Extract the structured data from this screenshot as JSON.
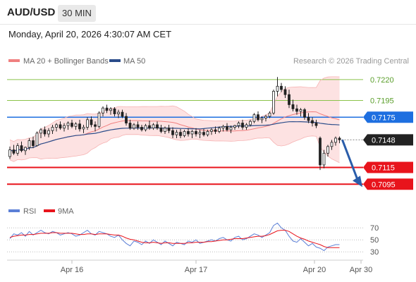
{
  "header": {
    "symbol": "AUD/USD",
    "timeframe": "30 MIN",
    "datetime": "Monday, April 20, 2026 4:30:07 AM CET"
  },
  "legend": {
    "bollinger_label": "MA 20 + Bollinger Bands",
    "ma50_label": "MA 50",
    "copyright": "Research © 2026 Trading Central"
  },
  "colors": {
    "candle_up": "#222222",
    "candle_down": "#222222",
    "bollinger": "#f08080",
    "band_fill": "#fde2e2",
    "ma50": "#2a4c8a",
    "resistance": "#8bc34a",
    "pivot": "#1e6fe0",
    "support": "#e8141c",
    "arrow": "#2a5daa",
    "rsi": "#5b7fd6",
    "rsi_ma": "#e8141c"
  },
  "chart_data": {
    "type": "candlestick",
    "ylim": [
      0.7075,
      0.7235
    ],
    "x_ticks": [
      "Apr 16",
      "Apr 17",
      "Apr 20",
      "Apr 30"
    ],
    "levels": [
      {
        "label": "0.7220",
        "value": 0.722,
        "kind": "resistance"
      },
      {
        "label": "0.7195",
        "value": 0.7195,
        "kind": "resistance"
      },
      {
        "label": "0.7175",
        "value": 0.7175,
        "kind": "pivot"
      },
      {
        "label": "0.7148",
        "value": 0.7148,
        "kind": "last"
      },
      {
        "label": "0.7115",
        "value": 0.7115,
        "kind": "support"
      },
      {
        "label": "0.7095",
        "value": 0.7095,
        "kind": "support"
      }
    ],
    "candles": [
      [
        0.7128,
        0.714,
        0.7125,
        0.7136
      ],
      [
        0.7136,
        0.7142,
        0.713,
        0.7132
      ],
      [
        0.7132,
        0.7144,
        0.7129,
        0.7141
      ],
      [
        0.7141,
        0.7146,
        0.7133,
        0.7135
      ],
      [
        0.7135,
        0.714,
        0.713,
        0.7139
      ],
      [
        0.7139,
        0.715,
        0.7136,
        0.7147
      ],
      [
        0.7147,
        0.7152,
        0.7138,
        0.7141
      ],
      [
        0.7141,
        0.7158,
        0.714,
        0.7156
      ],
      [
        0.7156,
        0.7162,
        0.715,
        0.716
      ],
      [
        0.716,
        0.7164,
        0.7152,
        0.7155
      ],
      [
        0.7155,
        0.7162,
        0.7151,
        0.7159
      ],
      [
        0.7159,
        0.7166,
        0.7155,
        0.7163
      ],
      [
        0.7163,
        0.7168,
        0.7158,
        0.7166
      ],
      [
        0.7166,
        0.717,
        0.716,
        0.7162
      ],
      [
        0.7162,
        0.7168,
        0.7158,
        0.7165
      ],
      [
        0.7165,
        0.717,
        0.716,
        0.7168
      ],
      [
        0.7168,
        0.7172,
        0.7162,
        0.7164
      ],
      [
        0.7164,
        0.7169,
        0.716,
        0.7167
      ],
      [
        0.7167,
        0.7172,
        0.7158,
        0.7161
      ],
      [
        0.7161,
        0.7166,
        0.7156,
        0.7163
      ],
      [
        0.7163,
        0.7175,
        0.716,
        0.7172
      ],
      [
        0.7172,
        0.7176,
        0.7163,
        0.7166
      ],
      [
        0.7166,
        0.717,
        0.7158,
        0.7164
      ],
      [
        0.7164,
        0.7182,
        0.7162,
        0.718
      ],
      [
        0.718,
        0.7188,
        0.7176,
        0.7186
      ],
      [
        0.7186,
        0.719,
        0.718,
        0.7183
      ],
      [
        0.7183,
        0.7187,
        0.7178,
        0.7185
      ],
      [
        0.7185,
        0.7187,
        0.7176,
        0.7179
      ],
      [
        0.7179,
        0.7184,
        0.7174,
        0.7181
      ],
      [
        0.7181,
        0.7184,
        0.7174,
        0.7176
      ],
      [
        0.7176,
        0.718,
        0.7165,
        0.7168
      ],
      [
        0.7168,
        0.7172,
        0.716,
        0.7162
      ],
      [
        0.7162,
        0.7168,
        0.716,
        0.7166
      ],
      [
        0.7166,
        0.717,
        0.716,
        0.7163
      ],
      [
        0.7163,
        0.7166,
        0.7158,
        0.716
      ],
      [
        0.716,
        0.7167,
        0.7158,
        0.7165
      ],
      [
        0.7165,
        0.7171,
        0.716,
        0.7162
      ],
      [
        0.7162,
        0.7168,
        0.716,
        0.7166
      ],
      [
        0.7166,
        0.717,
        0.716,
        0.7162
      ],
      [
        0.7162,
        0.7166,
        0.7156,
        0.7158
      ],
      [
        0.7158,
        0.7164,
        0.7155,
        0.7162
      ],
      [
        0.7162,
        0.7166,
        0.7156,
        0.7159
      ],
      [
        0.7159,
        0.7163,
        0.715,
        0.7154
      ],
      [
        0.7154,
        0.716,
        0.715,
        0.7157
      ],
      [
        0.7157,
        0.7161,
        0.715,
        0.7153
      ],
      [
        0.7153,
        0.716,
        0.7151,
        0.7158
      ],
      [
        0.7158,
        0.7162,
        0.7152,
        0.7155
      ],
      [
        0.7155,
        0.716,
        0.715,
        0.7158
      ],
      [
        0.7158,
        0.7162,
        0.7152,
        0.7155
      ],
      [
        0.7155,
        0.716,
        0.715,
        0.7157
      ],
      [
        0.7157,
        0.7161,
        0.7152,
        0.7154
      ],
      [
        0.7154,
        0.716,
        0.7152,
        0.7158
      ],
      [
        0.7158,
        0.7162,
        0.7154,
        0.716
      ],
      [
        0.716,
        0.7164,
        0.7155,
        0.7158
      ],
      [
        0.7158,
        0.7164,
        0.7156,
        0.7162
      ],
      [
        0.7162,
        0.7166,
        0.7158,
        0.7164
      ],
      [
        0.7164,
        0.7168,
        0.7158,
        0.716
      ],
      [
        0.716,
        0.7165,
        0.7156,
        0.7163
      ],
      [
        0.7163,
        0.7166,
        0.716,
        0.7165
      ],
      [
        0.7165,
        0.717,
        0.7162,
        0.7168
      ],
      [
        0.7168,
        0.7172,
        0.716,
        0.7163
      ],
      [
        0.7163,
        0.7168,
        0.716,
        0.7166
      ],
      [
        0.7166,
        0.7172,
        0.7164,
        0.717
      ],
      [
        0.717,
        0.718,
        0.7168,
        0.7178
      ],
      [
        0.7178,
        0.7182,
        0.717,
        0.7172
      ],
      [
        0.7172,
        0.7176,
        0.7168,
        0.7174
      ],
      [
        0.7174,
        0.7178,
        0.717,
        0.7176
      ],
      [
        0.7176,
        0.7182,
        0.7174,
        0.718
      ],
      [
        0.718,
        0.7208,
        0.7178,
        0.7206
      ],
      [
        0.7206,
        0.7223,
        0.72,
        0.7212
      ],
      [
        0.7212,
        0.7216,
        0.7205,
        0.7208
      ],
      [
        0.7208,
        0.7212,
        0.7198,
        0.7202
      ],
      [
        0.7202,
        0.7208,
        0.7186,
        0.719
      ],
      [
        0.719,
        0.7196,
        0.7182,
        0.7185
      ],
      [
        0.7185,
        0.719,
        0.7178,
        0.7182
      ],
      [
        0.7182,
        0.7186,
        0.7176,
        0.7184
      ],
      [
        0.7184,
        0.7186,
        0.7172,
        0.7175
      ],
      [
        0.7175,
        0.718,
        0.7168,
        0.7171
      ],
      [
        0.7171,
        0.7175,
        0.7164,
        0.7168
      ],
      [
        0.7168,
        0.7172,
        0.7162,
        0.7165
      ],
      [
        0.715,
        0.7152,
        0.7112,
        0.7118
      ],
      [
        0.7118,
        0.7136,
        0.7114,
        0.7132
      ],
      [
        0.7132,
        0.7142,
        0.7128,
        0.714
      ],
      [
        0.714,
        0.7148,
        0.7136,
        0.7145
      ],
      [
        0.7145,
        0.7152,
        0.7141,
        0.715
      ],
      [
        0.715,
        0.7152,
        0.7144,
        0.7148
      ]
    ],
    "rsi": {
      "legend": "RSI",
      "ma_legend": "9MA",
      "ylim": [
        22,
        82
      ],
      "ticks": [
        "70",
        "50",
        "30"
      ],
      "values": [
        52,
        60,
        58,
        62,
        56,
        64,
        58,
        62,
        66,
        62,
        60,
        64,
        62,
        58,
        60,
        62,
        60,
        56,
        58,
        62,
        66,
        60,
        58,
        64,
        62,
        60,
        56,
        54,
        58,
        50,
        44,
        40,
        48,
        46,
        42,
        48,
        44,
        50,
        46,
        42,
        48,
        44,
        40,
        46,
        44,
        42,
        48,
        46,
        50,
        44,
        46,
        48,
        50,
        48,
        52,
        54,
        50,
        48,
        54,
        56,
        50,
        52,
        56,
        60,
        58,
        54,
        58,
        62,
        74,
        78,
        70,
        66,
        56,
        48,
        46,
        52,
        46,
        40,
        44,
        38,
        36,
        32,
        38,
        40,
        42,
        42
      ],
      "ma_values": [
        54,
        56,
        57,
        58,
        58,
        59,
        59,
        60,
        61,
        61,
        61,
        62,
        62,
        61,
        61,
        61,
        61,
        60,
        59,
        59,
        60,
        60,
        59,
        60,
        60,
        60,
        59,
        58,
        58,
        56,
        53,
        51,
        50,
        48,
        46,
        45,
        45,
        46,
        45,
        44,
        45,
        45,
        44,
        44,
        44,
        44,
        45,
        45,
        46,
        46,
        46,
        47,
        47,
        48,
        49,
        50,
        50,
        51,
        52,
        52,
        52,
        53,
        54,
        55,
        56,
        56,
        57,
        59,
        62,
        65,
        66,
        66,
        64,
        60,
        56,
        53,
        51,
        48,
        46,
        44,
        42,
        39,
        37,
        37,
        37,
        37
      ]
    }
  }
}
